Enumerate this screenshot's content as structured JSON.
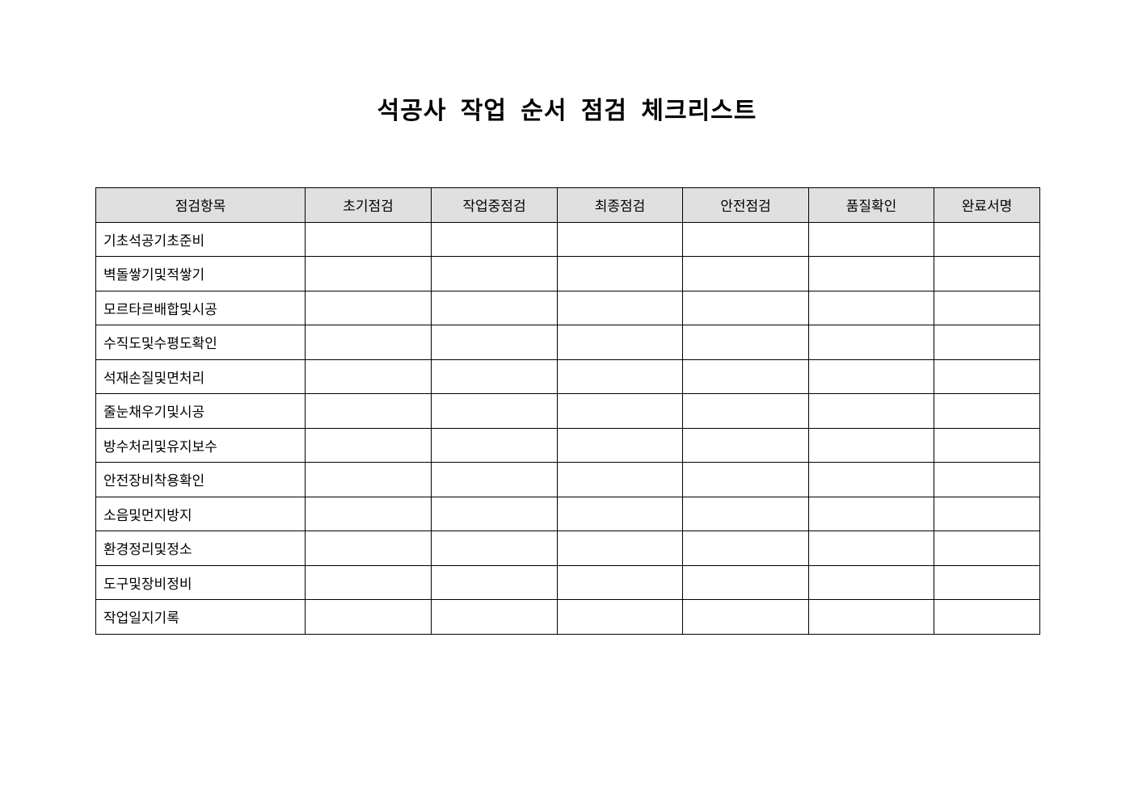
{
  "title": "석공사 작업 순서 점검 체크리스트",
  "table": {
    "headers": [
      "점검항목",
      "초기점검",
      "작업중점검",
      "최종점검",
      "안전점검",
      "품질확인",
      "완료서명"
    ],
    "items": [
      "기초석공기초준비",
      "벽돌쌓기및적쌓기",
      "모르타르배합및시공",
      "수직도및수평도확인",
      "석재손질및면처리",
      "줄눈채우기및시공",
      "방수처리및유지보수",
      "안전장비착용확인",
      "소음및먼지방지",
      "환경정리및정소",
      "도구및장비정비",
      "작업일지기록"
    ]
  }
}
